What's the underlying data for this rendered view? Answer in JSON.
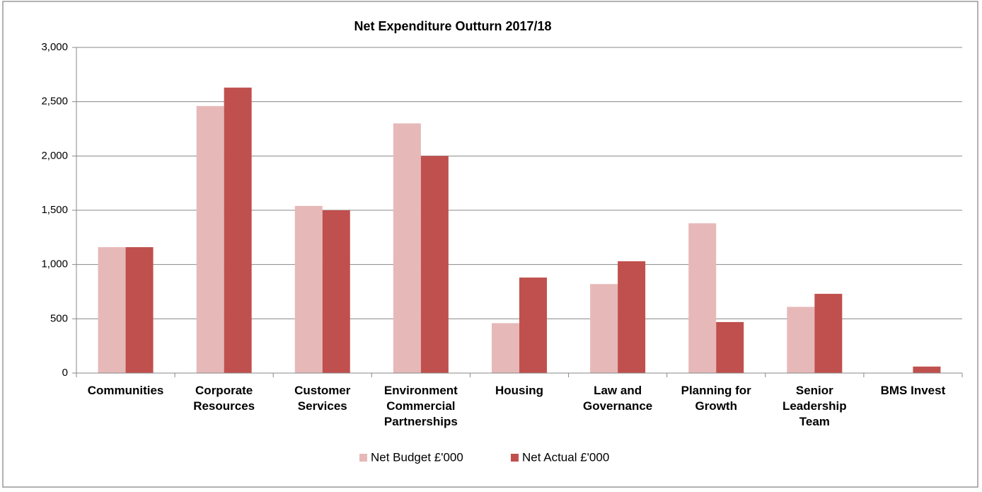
{
  "chart_data": {
    "type": "bar",
    "title": "Net Expenditure Outturn 2017/18",
    "categories": [
      "Communities",
      "Corporate\nResources",
      "Customer\nServices",
      "Environment\nCommercial\nPartnerships",
      "Housing",
      "Law and\nGovernance",
      "Planning for\nGrowth",
      "Senior\nLeadership\nTeam",
      "BMS Invest"
    ],
    "series": [
      {
        "name": "Net Budget £'000",
        "color": "#e6b9b8",
        "values": [
          1160,
          2460,
          1540,
          2300,
          460,
          820,
          1380,
          610,
          0
        ]
      },
      {
        "name": "Net Actual £'000",
        "color": "#c0504d",
        "values": [
          1160,
          2630,
          1500,
          2000,
          880,
          1030,
          470,
          730,
          60
        ]
      }
    ],
    "ylim": [
      0,
      3000
    ],
    "yticks": [
      0,
      500,
      {
        "value": 1000,
        "label": "1,000"
      },
      {
        "value": 1500,
        "label": "1,500"
      },
      {
        "value": 2000,
        "label": "2,000"
      },
      {
        "value": 2500,
        "label": "2,500"
      },
      {
        "value": 3000,
        "label": "3,000"
      }
    ],
    "grid": true,
    "legend": "bottom"
  }
}
